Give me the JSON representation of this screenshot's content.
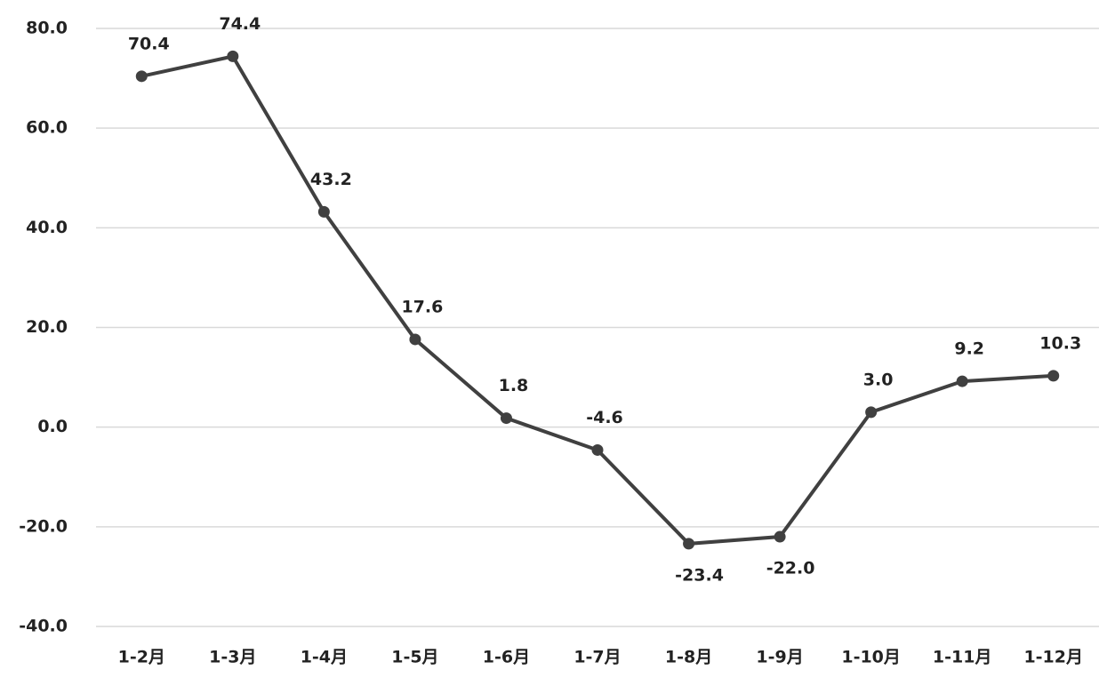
{
  "chart_data": {
    "type": "line",
    "categories": [
      "1-2月",
      "1-3月",
      "1-4月",
      "1-5月",
      "1-6月",
      "1-7月",
      "1-8月",
      "1-9月",
      "1-10月",
      "1-11月",
      "1-12月"
    ],
    "series": [
      {
        "color": "#404040",
        "values": [
          70.4,
          74.4,
          43.2,
          17.6,
          1.8,
          -4.6,
          -23.4,
          -22.0,
          3.0,
          9.2,
          10.3
        ],
        "value_labels": [
          "70.4",
          "74.4",
          "43.2",
          "17.6",
          "1.8",
          "-4.6",
          "-23.4",
          "-22.0",
          "3.0",
          "9.2",
          "10.3"
        ]
      }
    ],
    "ylim": [
      -40,
      80
    ],
    "yticks": [
      {
        "value": -40,
        "label": "-40.0"
      },
      {
        "value": -20,
        "label": "-20.0"
      },
      {
        "value": 0,
        "label": "0.0"
      },
      {
        "value": 20,
        "label": "20.0"
      },
      {
        "value": 40,
        "label": "40.0"
      },
      {
        "value": 60,
        "label": "60.0"
      },
      {
        "value": 80,
        "label": "80.0"
      }
    ],
    "grid": true
  }
}
